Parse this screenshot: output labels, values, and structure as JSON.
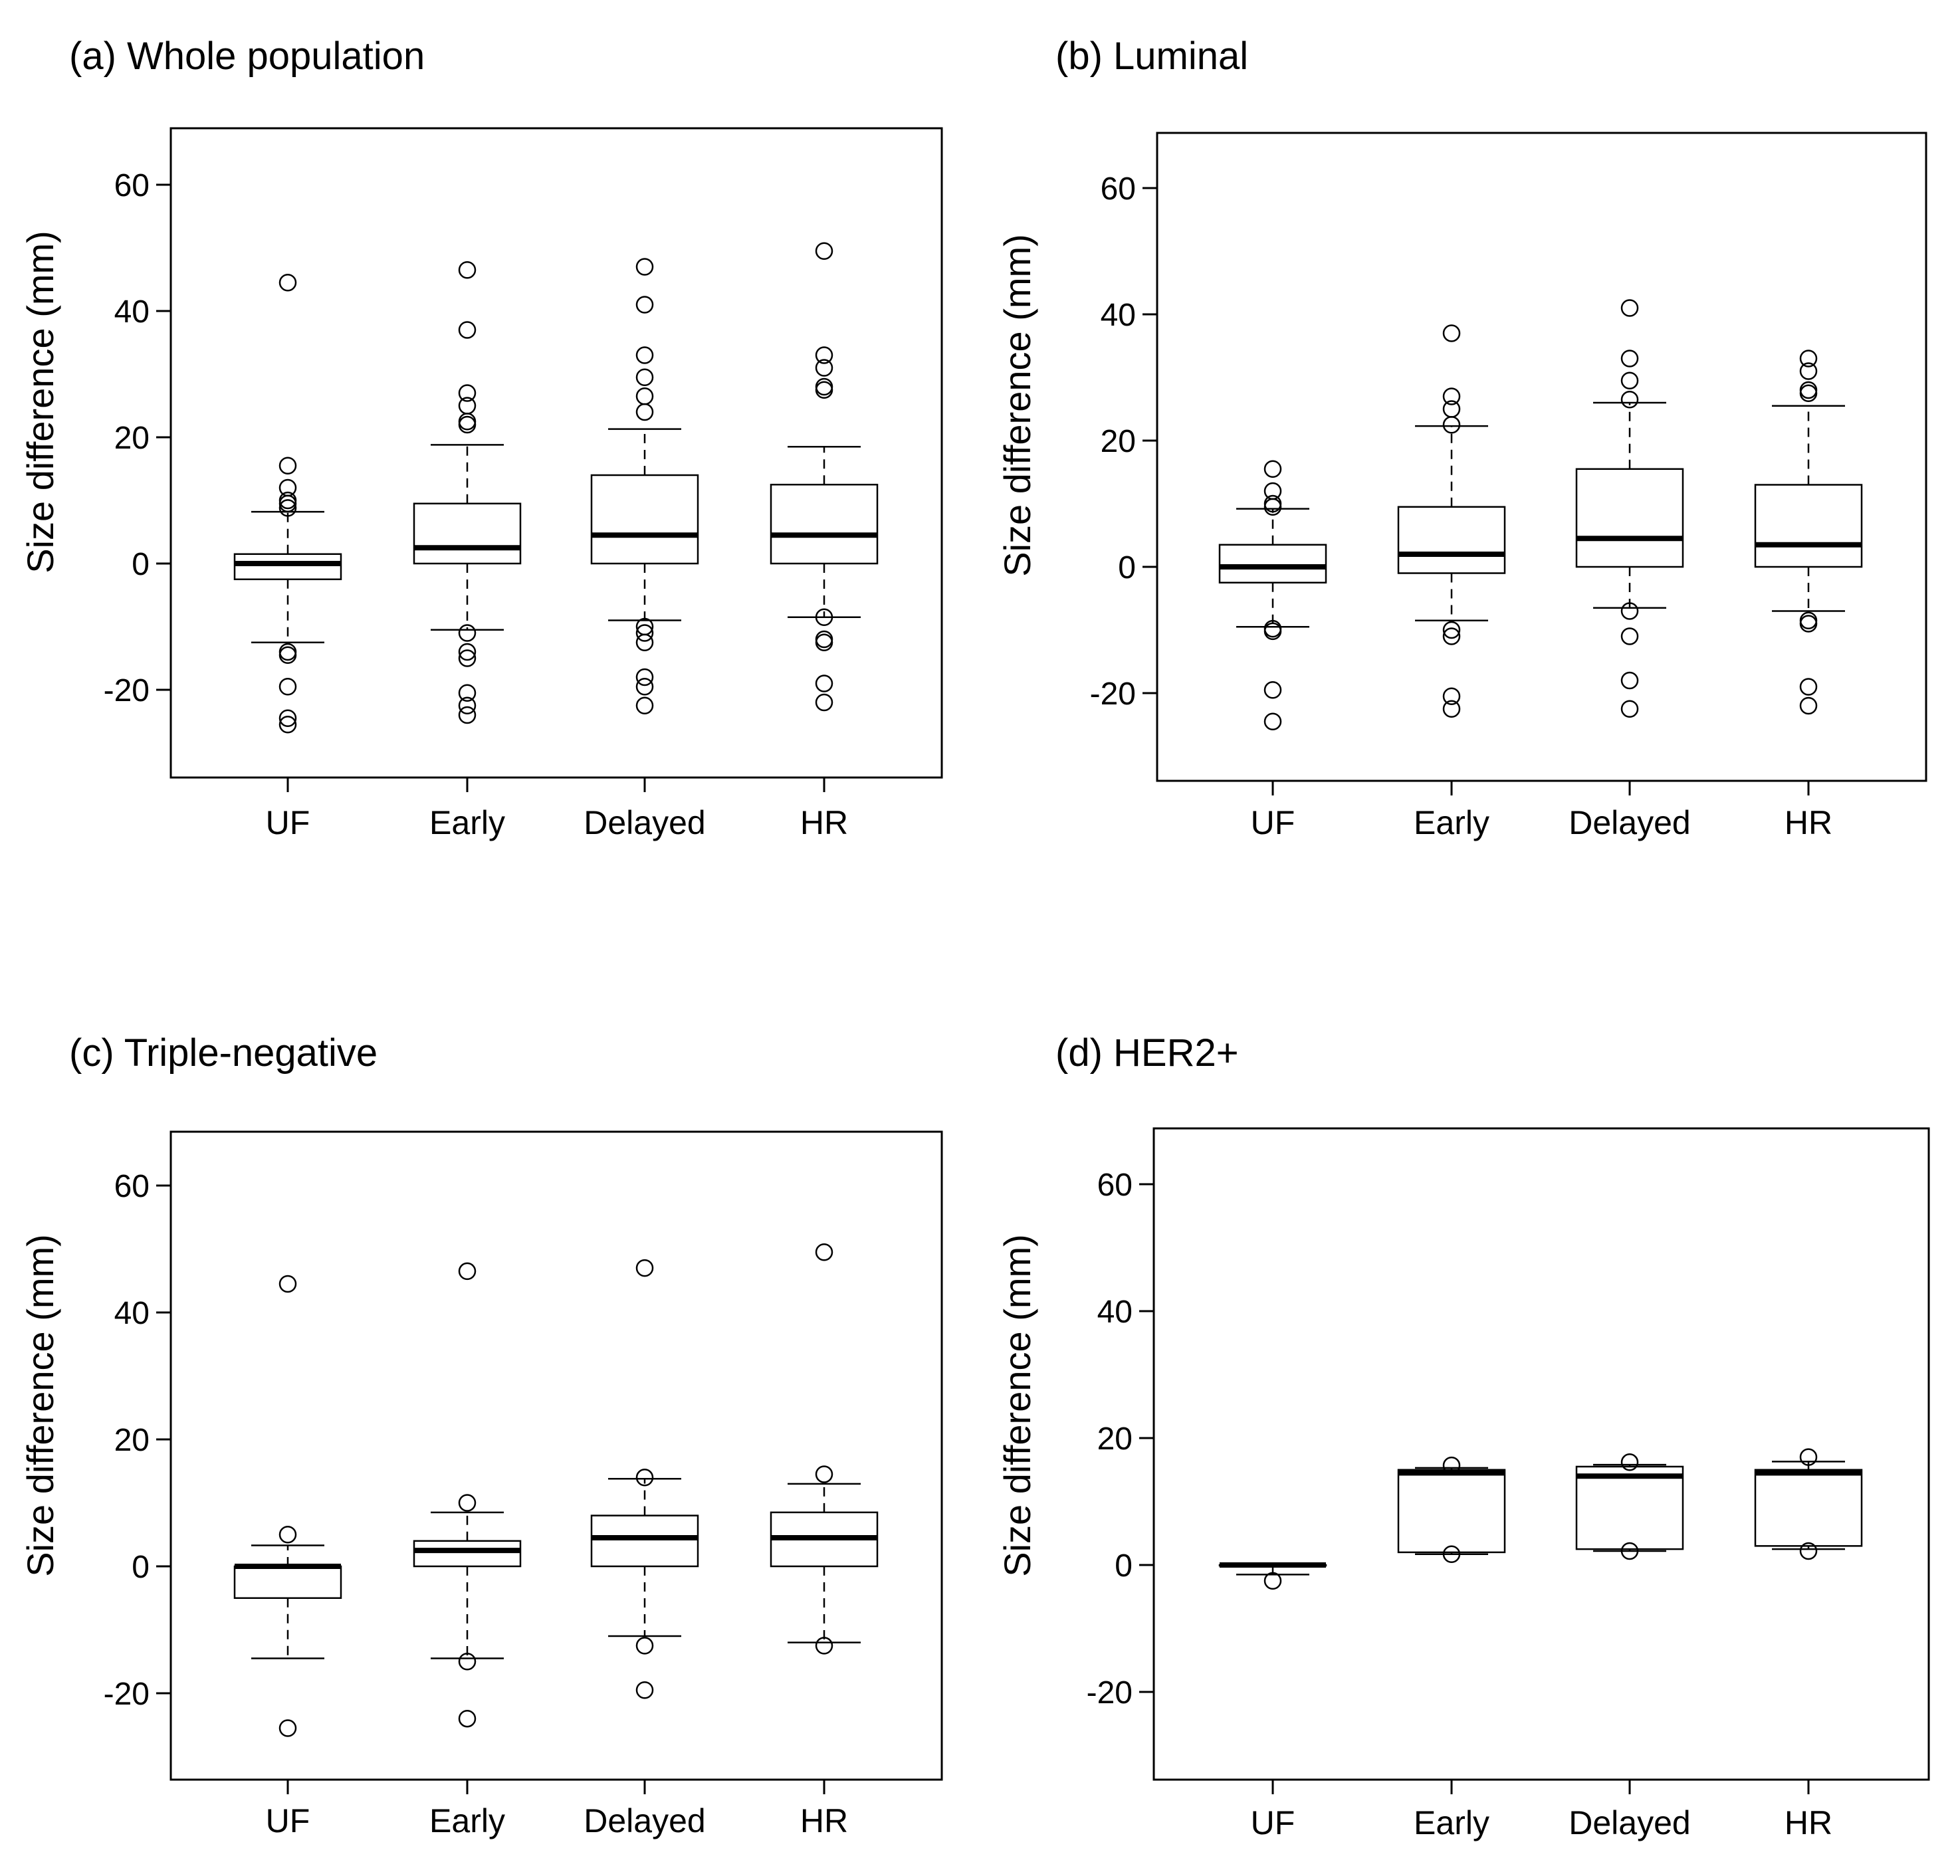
{
  "chart_data": [
    {
      "type": "boxplot",
      "title": "(a) Whole population",
      "ylabel": "Size difference (mm)",
      "ylim": [
        -34,
        68
      ],
      "yticks": [
        60,
        40,
        20,
        0,
        -20
      ],
      "categories": [
        "UF",
        "Early",
        "Delayed",
        "HR"
      ],
      "boxes": [
        {
          "category": "UF",
          "whisker_low": -12.5,
          "q1": -2.5,
          "median": 0,
          "q3": 1.5,
          "whisker_high": 8.2,
          "outliers": [
            44.5,
            15.5,
            12,
            10,
            9.5,
            8.8,
            -14,
            -14.5,
            -19.5,
            -24.5,
            -25.5
          ]
        },
        {
          "category": "Early",
          "whisker_low": -10.5,
          "q1": 0,
          "median": 2.5,
          "q3": 9.5,
          "whisker_high": 18.8,
          "outliers": [
            46.5,
            37,
            27,
            25,
            22.5,
            22,
            -11,
            -14,
            -15,
            -20.5,
            -22.5,
            -24
          ]
        },
        {
          "category": "Delayed",
          "whisker_low": -9,
          "q1": 0,
          "median": 4.5,
          "q3": 14,
          "whisker_high": 21.3,
          "outliers": [
            47,
            41,
            33,
            29.5,
            26.5,
            24,
            -10,
            -11,
            -12.5,
            -18,
            -19.5,
            -22.5
          ]
        },
        {
          "category": "HR",
          "whisker_low": -8.5,
          "q1": 0,
          "median": 4.5,
          "q3": 12.5,
          "whisker_high": 18.5,
          "outliers": [
            49.5,
            33,
            31,
            28,
            27.5,
            -8.5,
            -12,
            -12.5,
            -19,
            -22
          ]
        }
      ]
    },
    {
      "type": "boxplot",
      "title": "(b) Luminal",
      "ylabel": "Size difference (mm)",
      "ylim": [
        -34,
        68
      ],
      "yticks": [
        60,
        40,
        20,
        0,
        -20
      ],
      "categories": [
        "UF",
        "Early",
        "Delayed",
        "HR"
      ],
      "boxes": [
        {
          "category": "UF",
          "whisker_low": -9.5,
          "q1": -2.5,
          "median": 0,
          "q3": 3.5,
          "whisker_high": 9.2,
          "outliers": [
            15.5,
            12,
            10,
            9.5,
            -9.8,
            -10.2,
            -19.5,
            -24.5
          ]
        },
        {
          "category": "Early",
          "whisker_low": -8.5,
          "q1": -1,
          "median": 2,
          "q3": 9.5,
          "whisker_high": 22.3,
          "outliers": [
            37,
            27,
            25,
            22.5,
            -10,
            -11,
            -20.5,
            -22.5
          ]
        },
        {
          "category": "Delayed",
          "whisker_low": -6.5,
          "q1": 0,
          "median": 4.5,
          "q3": 15.5,
          "whisker_high": 26,
          "outliers": [
            41,
            33,
            29.5,
            26.5,
            -7,
            -11,
            -18,
            -22.5
          ]
        },
        {
          "category": "HR",
          "whisker_low": -7,
          "q1": 0,
          "median": 3.5,
          "q3": 13,
          "whisker_high": 25.5,
          "outliers": [
            33,
            31,
            28,
            27.5,
            -8.5,
            -9,
            -19,
            -22
          ]
        }
      ]
    },
    {
      "type": "boxplot",
      "title": "(c) Triple-negative",
      "ylabel": "Size difference (mm)",
      "ylim": [
        -34,
        68
      ],
      "yticks": [
        60,
        40,
        20,
        0,
        -20
      ],
      "categories": [
        "UF",
        "Early",
        "Delayed",
        "HR"
      ],
      "boxes": [
        {
          "category": "UF",
          "whisker_low": -14.5,
          "q1": -5,
          "median": 0,
          "q3": 0,
          "whisker_high": 3.3,
          "outliers": [
            44.5,
            5,
            -25.5
          ]
        },
        {
          "category": "Early",
          "whisker_low": -14.5,
          "q1": 0,
          "median": 2.5,
          "q3": 4,
          "whisker_high": 8.5,
          "outliers": [
            46.5,
            10,
            -15,
            -24
          ]
        },
        {
          "category": "Delayed",
          "whisker_low": -11,
          "q1": 0,
          "median": 4.5,
          "q3": 8,
          "whisker_high": 13.8,
          "outliers": [
            47,
            14,
            -12.5,
            -19.5
          ]
        },
        {
          "category": "HR",
          "whisker_low": -12,
          "q1": 0,
          "median": 4.5,
          "q3": 8.5,
          "whisker_high": 13,
          "outliers": [
            49.5,
            14.5,
            -12.5
          ]
        }
      ]
    },
    {
      "type": "boxplot",
      "title": "(d) HER2+",
      "ylabel": "Size difference (mm)",
      "ylim": [
        -34,
        68
      ],
      "yticks": [
        60,
        40,
        20,
        0,
        -20
      ],
      "categories": [
        "UF",
        "Early",
        "Delayed",
        "HR"
      ],
      "boxes": [
        {
          "category": "UF",
          "whisker_low": -1.5,
          "q1": 0,
          "median": 0,
          "q3": 0,
          "whisker_high": 0,
          "outliers": [
            -2.5
          ]
        },
        {
          "category": "Early",
          "whisker_low": 1.7,
          "q1": 2,
          "median": 14.5,
          "q3": 15,
          "whisker_high": 15.3,
          "outliers": [
            15.7,
            1.7
          ]
        },
        {
          "category": "Delayed",
          "whisker_low": 2.2,
          "q1": 2.5,
          "median": 14,
          "q3": 15.5,
          "whisker_high": 15.8,
          "outliers": [
            16.2,
            2.2
          ]
        },
        {
          "category": "HR",
          "whisker_low": 2.5,
          "q1": 3,
          "median": 14.5,
          "q3": 15,
          "whisker_high": 16.3,
          "outliers": [
            17,
            2.2
          ]
        }
      ]
    }
  ]
}
